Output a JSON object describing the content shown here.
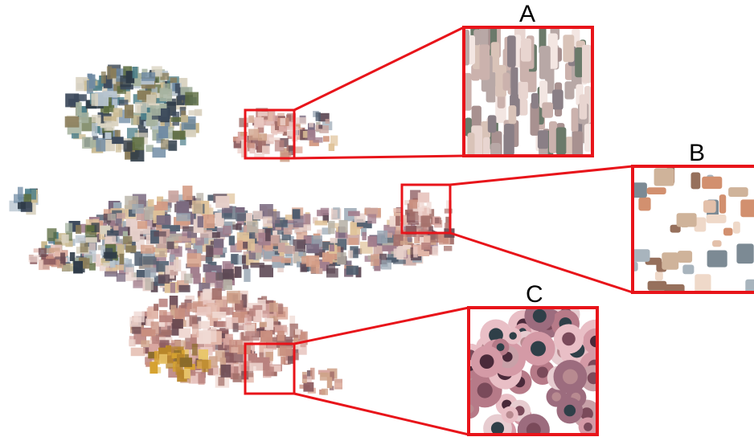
{
  "colors": {
    "highlight": "#e8141a",
    "background": "#ffffff",
    "label": "#000000"
  },
  "callouts": {
    "a": {
      "label": "A"
    },
    "b": {
      "label": "B"
    },
    "c": {
      "label": "C"
    }
  }
}
